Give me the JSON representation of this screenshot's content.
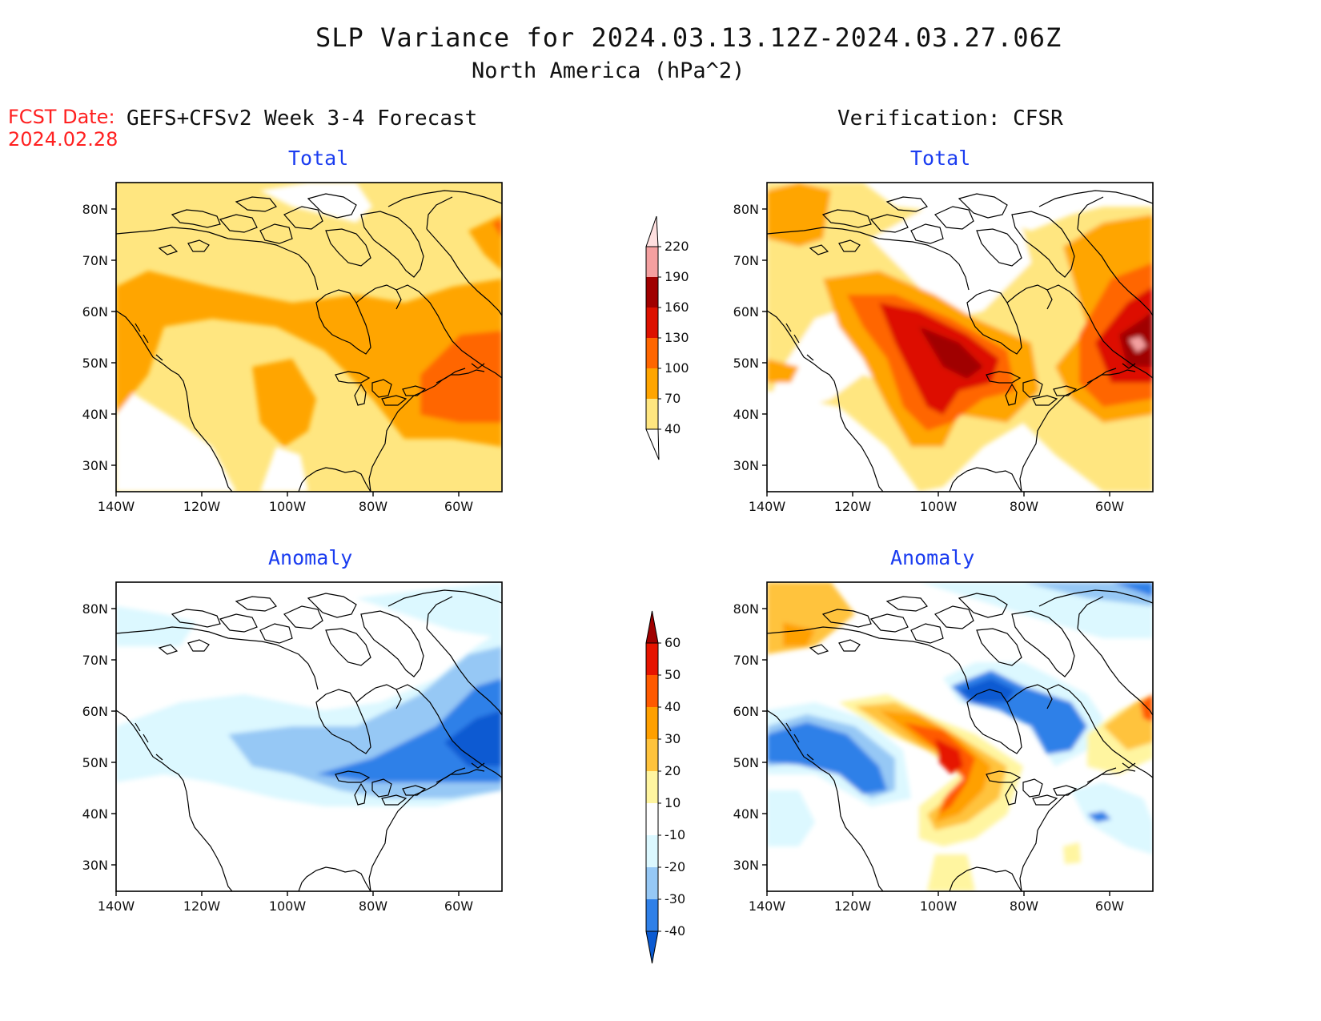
{
  "header": {
    "title": "SLP Variance for 2024.03.13.12Z-2024.03.27.06Z",
    "subtitle": "North America (hPa^2)",
    "fcst_label": "FCST Date:",
    "fcst_date": "2024.02.28",
    "left_heading": "GEFS+CFSv2 Week 3-4 Forecast",
    "right_heading": "Verification: CFSR"
  },
  "panels": [
    {
      "id": "forecast-total",
      "title": "Total"
    },
    {
      "id": "verification-total",
      "title": "Total"
    },
    {
      "id": "forecast-anomaly",
      "title": "Anomaly"
    },
    {
      "id": "verification-anomaly",
      "title": "Anomaly"
    }
  ],
  "axes": {
    "lat_labels": [
      "80N",
      "70N",
      "60N",
      "50N",
      "40N",
      "30N"
    ],
    "lon_labels": [
      "140W",
      "120W",
      "100W",
      "80W",
      "60W"
    ]
  },
  "colorbars": {
    "total": {
      "levels": [
        "40",
        "70",
        "100",
        "130",
        "160",
        "190",
        "220"
      ],
      "colors": [
        "#ffe680",
        "#ffa500",
        "#ff6600",
        "#dd1100",
        "#a00000",
        "#f4a0a0",
        "#ffe0e0"
      ]
    },
    "anomaly": {
      "levels": [
        "-40",
        "-30",
        "-20",
        "-10",
        "10",
        "20",
        "30",
        "40",
        "50",
        "60"
      ],
      "colors": [
        "#0a5ad2",
        "#2f80e8",
        "#96c8f5",
        "#dcf8ff",
        "#ffffff",
        "#fff5a0",
        "#ffc33c",
        "#ffa000",
        "#ff5a00",
        "#e61400",
        "#a00000"
      ]
    }
  }
}
